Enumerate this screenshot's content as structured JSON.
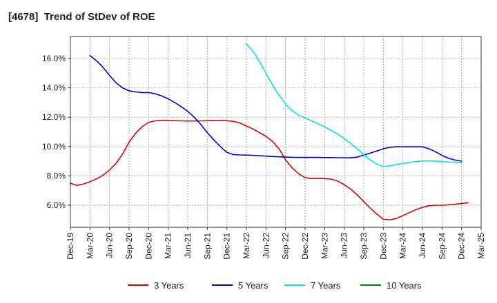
{
  "chart_data": {
    "type": "line",
    "title": "[4678]  Trend of StDev of ROE",
    "xlabel": "",
    "ylabel": "",
    "x_ticks": [
      "Dec-19",
      "Mar-20",
      "Jun-20",
      "Sep-20",
      "Dec-20",
      "Mar-21",
      "Jun-21",
      "Sep-21",
      "Dec-21",
      "Mar-22",
      "Jun-22",
      "Sep-22",
      "Dec-22",
      "Mar-23",
      "Jun-23",
      "Sep-23",
      "Dec-23",
      "Mar-24",
      "Jun-24",
      "Sep-24",
      "Dec-24",
      "Mar-25"
    ],
    "y_ticks": [
      6.0,
      8.0,
      10.0,
      12.0,
      14.0,
      16.0
    ],
    "y_tick_labels": [
      "6.0%",
      "8.0%",
      "10.0%",
      "12.0%",
      "14.0%",
      "16.0%"
    ],
    "ylim": [
      4.5,
      17.5
    ],
    "grid": true,
    "legend_position": "bottom",
    "series": [
      {
        "name": "3 Years",
        "color": "#dd0000",
        "values": [
          [
            "Dec-19",
            7.5
          ],
          [
            "Jan-20",
            7.35
          ],
          [
            "Feb-20",
            7.45
          ],
          [
            "Mar-20",
            7.6
          ],
          [
            "Apr-20",
            7.8
          ],
          [
            "May-20",
            8.05
          ],
          [
            "Jun-20",
            8.4
          ],
          [
            "Jul-20",
            8.85
          ],
          [
            "Aug-20",
            9.5
          ],
          [
            "Sep-20",
            10.3
          ],
          [
            "Oct-20",
            10.9
          ],
          [
            "Nov-20",
            11.35
          ],
          [
            "Dec-20",
            11.65
          ],
          [
            "Jan-21",
            11.75
          ],
          [
            "Feb-21",
            11.78
          ],
          [
            "Mar-21",
            11.78
          ],
          [
            "Apr-21",
            11.76
          ],
          [
            "May-21",
            11.75
          ],
          [
            "Jun-21",
            11.74
          ],
          [
            "Jul-21",
            11.74
          ],
          [
            "Aug-21",
            11.75
          ],
          [
            "Sep-21",
            11.76
          ],
          [
            "Oct-21",
            11.77
          ],
          [
            "Nov-21",
            11.77
          ],
          [
            "Dec-21",
            11.76
          ],
          [
            "Jan-22",
            11.72
          ],
          [
            "Feb-22",
            11.6
          ],
          [
            "Mar-22",
            11.4
          ],
          [
            "Apr-22",
            11.2
          ],
          [
            "May-22",
            10.95
          ],
          [
            "Jun-22",
            10.7
          ],
          [
            "Jul-22",
            10.35
          ],
          [
            "Aug-22",
            9.85
          ],
          [
            "Sep-22",
            9.1
          ],
          [
            "Oct-22",
            8.55
          ],
          [
            "Nov-22",
            8.15
          ],
          [
            "Dec-22",
            7.88
          ],
          [
            "Jan-23",
            7.82
          ],
          [
            "Feb-23",
            7.83
          ],
          [
            "Mar-23",
            7.82
          ],
          [
            "Apr-23",
            7.78
          ],
          [
            "May-23",
            7.65
          ],
          [
            "Jun-23",
            7.4
          ],
          [
            "Jul-23",
            7.1
          ],
          [
            "Aug-23",
            6.7
          ],
          [
            "Sep-23",
            6.25
          ],
          [
            "Oct-23",
            5.8
          ],
          [
            "Nov-23",
            5.4
          ],
          [
            "Dec-23",
            5.05
          ],
          [
            "Jan-24",
            5.0
          ],
          [
            "Feb-24",
            5.1
          ],
          [
            "Mar-24",
            5.3
          ],
          [
            "Apr-24",
            5.5
          ],
          [
            "May-24",
            5.7
          ],
          [
            "Jun-24",
            5.85
          ],
          [
            "Jul-24",
            5.97
          ],
          [
            "Aug-24",
            6.0
          ],
          [
            "Sep-24",
            6.0
          ],
          [
            "Oct-24",
            6.03
          ],
          [
            "Nov-24",
            6.07
          ],
          [
            "Dec-24",
            6.12
          ],
          [
            "Jan-25",
            6.16
          ]
        ]
      },
      {
        "name": "5 Years",
        "color": "#0000cc",
        "values": [
          [
            "Mar-20",
            16.2
          ],
          [
            "Apr-20",
            15.85
          ],
          [
            "May-20",
            15.4
          ],
          [
            "Jun-20",
            14.85
          ],
          [
            "Jul-20",
            14.35
          ],
          [
            "Aug-20",
            14.0
          ],
          [
            "Sep-20",
            13.8
          ],
          [
            "Oct-20",
            13.72
          ],
          [
            "Nov-20",
            13.68
          ],
          [
            "Dec-20",
            13.68
          ],
          [
            "Jan-21",
            13.6
          ],
          [
            "Feb-21",
            13.45
          ],
          [
            "Mar-21",
            13.25
          ],
          [
            "Apr-21",
            13.0
          ],
          [
            "May-21",
            12.72
          ],
          [
            "Jun-21",
            12.4
          ],
          [
            "Jul-21",
            12.0
          ],
          [
            "Aug-21",
            11.5
          ],
          [
            "Sep-21",
            10.95
          ],
          [
            "Oct-21",
            10.45
          ],
          [
            "Nov-21",
            10.0
          ],
          [
            "Dec-21",
            9.6
          ],
          [
            "Jan-22",
            9.45
          ],
          [
            "Feb-22",
            9.43
          ],
          [
            "Mar-22",
            9.42
          ],
          [
            "Apr-22",
            9.4
          ],
          [
            "May-22",
            9.38
          ],
          [
            "Jun-22",
            9.35
          ],
          [
            "Jul-22",
            9.32
          ],
          [
            "Aug-22",
            9.3
          ],
          [
            "Sep-22",
            9.28
          ],
          [
            "Oct-22",
            9.27
          ],
          [
            "Nov-22",
            9.26
          ],
          [
            "Dec-22",
            9.26
          ],
          [
            "Jan-23",
            9.26
          ],
          [
            "Feb-23",
            9.26
          ],
          [
            "Mar-23",
            9.25
          ],
          [
            "Apr-23",
            9.25
          ],
          [
            "May-23",
            9.24
          ],
          [
            "Jun-23",
            9.23
          ],
          [
            "Jul-23",
            9.23
          ],
          [
            "Aug-23",
            9.28
          ],
          [
            "Sep-23",
            9.42
          ],
          [
            "Oct-23",
            9.55
          ],
          [
            "Nov-23",
            9.7
          ],
          [
            "Dec-23",
            9.85
          ],
          [
            "Jan-24",
            9.95
          ],
          [
            "Feb-24",
            9.98
          ],
          [
            "Mar-24",
            9.98
          ],
          [
            "Apr-24",
            9.98
          ],
          [
            "May-24",
            9.98
          ],
          [
            "Jun-24",
            9.98
          ],
          [
            "Jul-24",
            9.85
          ],
          [
            "Aug-24",
            9.65
          ],
          [
            "Sep-24",
            9.4
          ],
          [
            "Oct-24",
            9.2
          ],
          [
            "Nov-24",
            9.08
          ],
          [
            "Dec-24",
            9.0
          ]
        ]
      },
      {
        "name": "7 Years",
        "color": "#00e5e5",
        "values": [
          [
            "Mar-22",
            17.0
          ],
          [
            "Apr-22",
            16.5
          ],
          [
            "May-22",
            15.8
          ],
          [
            "Jun-22",
            15.0
          ],
          [
            "Jul-22",
            14.2
          ],
          [
            "Aug-22",
            13.5
          ],
          [
            "Sep-22",
            12.9
          ],
          [
            "Oct-22",
            12.45
          ],
          [
            "Nov-22",
            12.15
          ],
          [
            "Dec-22",
            11.95
          ],
          [
            "Jan-23",
            11.75
          ],
          [
            "Feb-23",
            11.55
          ],
          [
            "Mar-23",
            11.35
          ],
          [
            "Apr-23",
            11.1
          ],
          [
            "May-23",
            10.85
          ],
          [
            "Jun-23",
            10.55
          ],
          [
            "Jul-23",
            10.2
          ],
          [
            "Aug-23",
            9.85
          ],
          [
            "Sep-23",
            9.45
          ],
          [
            "Oct-23",
            9.1
          ],
          [
            "Nov-23",
            8.8
          ],
          [
            "Dec-23",
            8.65
          ],
          [
            "Jan-24",
            8.68
          ],
          [
            "Feb-24",
            8.78
          ],
          [
            "Mar-24",
            8.85
          ],
          [
            "Apr-24",
            8.92
          ],
          [
            "May-24",
            8.98
          ],
          [
            "Jun-24",
            9.02
          ],
          [
            "Jul-24",
            9.03
          ],
          [
            "Aug-24",
            9.01
          ],
          [
            "Sep-24",
            8.98
          ],
          [
            "Oct-24",
            8.95
          ],
          [
            "Nov-24",
            8.93
          ],
          [
            "Dec-24",
            8.92
          ]
        ]
      },
      {
        "name": "10 Years",
        "color": "#008000",
        "values": []
      }
    ]
  }
}
